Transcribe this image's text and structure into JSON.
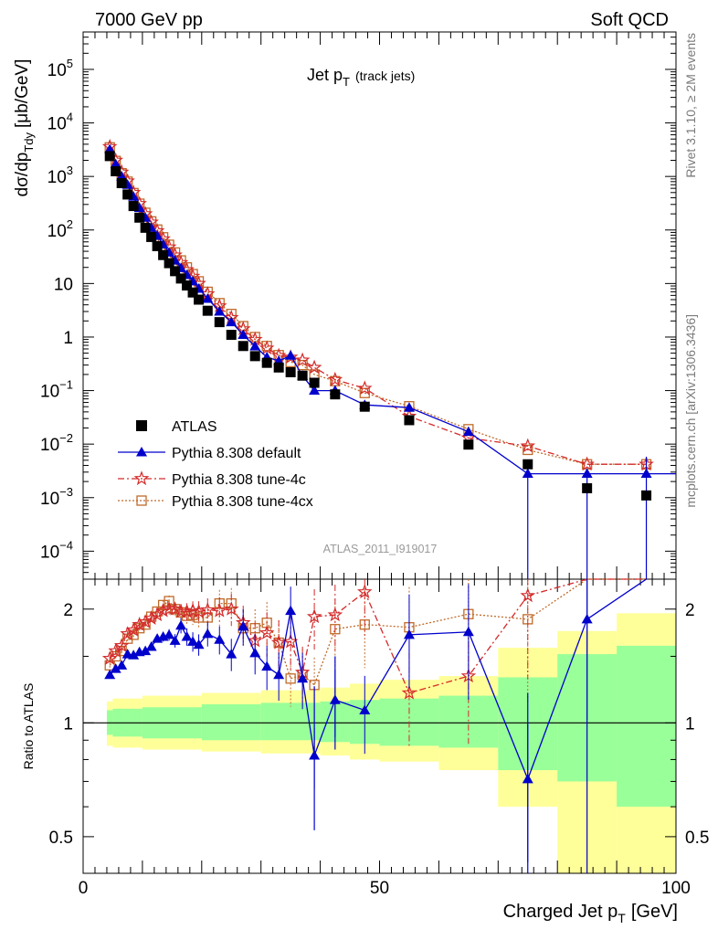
{
  "header": {
    "left": "7000 GeV pp",
    "right": "Soft QCD"
  },
  "side": {
    "top": "Rivet 3.1.10, ≥ 2M events",
    "bottom": "mcplots.cern.ch [arXiv:1306.3436]"
  },
  "analysis_id": "ATLAS_2011_I919017",
  "colors": {
    "data": "#000000",
    "default": "#0000cc",
    "tune4c": "#d42a2a",
    "tune4cx": "#c06a2a",
    "band_inner": "#99ff99",
    "band_outer": "#ffff99"
  },
  "chart_data": [
    {
      "type": "scatter",
      "title": "Jet p",
      "title_sub": "T",
      "title_extra": "(track jets)",
      "ylabel": "dσ/dp",
      "ylabel_sub": "Tdy",
      "ylabel_unit": "[μb/GeV]",
      "yscale": "log",
      "xlim": [
        0,
        100
      ],
      "ylim": [
        3e-05,
        500000
      ],
      "yticks": [
        {
          "v": 0.0001,
          "base": "10",
          "exp": "−4"
        },
        {
          "v": 0.001,
          "base": "10",
          "exp": "−3"
        },
        {
          "v": 0.01,
          "base": "10",
          "exp": "−2"
        },
        {
          "v": 0.1,
          "base": "10",
          "exp": "−1"
        },
        {
          "v": 1,
          "base": "1",
          "exp": ""
        },
        {
          "v": 10,
          "base": "10",
          "exp": ""
        },
        {
          "v": 100,
          "base": "10",
          "exp": "2"
        },
        {
          "v": 1000,
          "base": "10",
          "exp": "3"
        },
        {
          "v": 10000,
          "base": "10",
          "exp": "4"
        },
        {
          "v": 100000,
          "base": "10",
          "exp": "5"
        }
      ],
      "legend": {
        "data": "ATLAS",
        "default": "Pythia 8.308 default",
        "tune4c": "Pythia 8.308 tune-4c",
        "tune4cx": "Pythia 8.308 tune-4cx"
      },
      "x": [
        4.5,
        5.5,
        6.5,
        7.5,
        8.5,
        9.5,
        10.5,
        11.5,
        12.5,
        13.5,
        14.5,
        15.5,
        16.5,
        17.5,
        18.5,
        19.5,
        21,
        23,
        25,
        27,
        29,
        31,
        33,
        35,
        37,
        39,
        42.5,
        47.5,
        55,
        65,
        75,
        85,
        95
      ],
      "series": [
        {
          "key": "data",
          "values": [
            2400,
            1250,
            750,
            460,
            280,
            170,
            110,
            74,
            50,
            34,
            24,
            17,
            12.4,
            9.2,
            6.8,
            5.0,
            3.1,
            1.9,
            1.1,
            0.68,
            0.44,
            0.33,
            0.27,
            0.22,
            0.19,
            0.14,
            0.085,
            0.05,
            0.028,
            0.0098,
            0.0042,
            0.0015,
            0.0011
          ]
        },
        {
          "key": "default",
          "values": [
            3200,
            1700,
            1000,
            700,
            420,
            260,
            170,
            110,
            78,
            54,
            38,
            27,
            19.5,
            14.5,
            11,
            8.0,
            5.2,
            3.0,
            1.9,
            1.1,
            0.67,
            0.42,
            0.36,
            0.45,
            0.19,
            0.1,
            0.1,
            0.054,
            0.048,
            0.017,
            0.0028,
            0.0028,
            0.0028
          ]
        },
        {
          "key": "tune4c",
          "values": [
            3600,
            2000,
            1200,
            820,
            500,
            310,
            200,
            140,
            96,
            68,
            48,
            34,
            24.5,
            18,
            13.6,
            10,
            6.4,
            3.8,
            2.3,
            1.42,
            0.9,
            0.62,
            0.45,
            0.42,
            0.37,
            0.27,
            0.16,
            0.11,
            0.033,
            0.013,
            0.0092,
            0.0042,
            0.0042
          ]
        },
        {
          "key": "tune4cx",
          "values": [
            3500,
            1950,
            1150,
            800,
            490,
            310,
            210,
            145,
            102,
            73,
            53,
            38,
            27,
            20,
            15,
            11,
            7.0,
            4.3,
            2.7,
            1.6,
            1.0,
            0.68,
            0.46,
            0.34,
            0.3,
            0.2,
            0.15,
            0.09,
            0.051,
            0.019,
            0.0078,
            0.0042,
            0.0042
          ]
        }
      ]
    },
    {
      "type": "scatter",
      "ylabel": "Ratio to ATLAS",
      "yscale": "log",
      "xlabel": "Charged Jet p",
      "xlabel_sub": "T",
      "xlabel_unit": "[GeV]",
      "xlim": [
        0,
        100
      ],
      "ylim": [
        0.4,
        2.4
      ],
      "yticks": [
        {
          "v": 0.5,
          "label": "0.5"
        },
        {
          "v": 1,
          "label": "1"
        },
        {
          "v": 2,
          "label": "2"
        }
      ],
      "xticks": [
        {
          "v": 0,
          "label": "0"
        },
        {
          "v": 50,
          "label": "50"
        },
        {
          "v": 100,
          "label": "100"
        }
      ],
      "bands": [
        {
          "x0": 4,
          "x1": 5,
          "inner": [
            0.93,
            1.08
          ],
          "outer": [
            0.87,
            1.14
          ]
        },
        {
          "x0": 5,
          "x1": 10,
          "inner": [
            0.92,
            1.09
          ],
          "outer": [
            0.86,
            1.16
          ]
        },
        {
          "x0": 10,
          "x1": 20,
          "inner": [
            0.91,
            1.1
          ],
          "outer": [
            0.85,
            1.18
          ]
        },
        {
          "x0": 20,
          "x1": 30,
          "inner": [
            0.9,
            1.12
          ],
          "outer": [
            0.84,
            1.2
          ]
        },
        {
          "x0": 30,
          "x1": 40,
          "inner": [
            0.9,
            1.13
          ],
          "outer": [
            0.83,
            1.22
          ]
        },
        {
          "x0": 40,
          "x1": 45,
          "inner": [
            0.89,
            1.14
          ],
          "outer": [
            0.82,
            1.24
          ]
        },
        {
          "x0": 45,
          "x1": 50,
          "inner": [
            0.88,
            1.15
          ],
          "outer": [
            0.8,
            1.27
          ]
        },
        {
          "x0": 50,
          "x1": 60,
          "inner": [
            0.87,
            1.16
          ],
          "outer": [
            0.79,
            1.3
          ]
        },
        {
          "x0": 60,
          "x1": 70,
          "inner": [
            0.86,
            1.18
          ],
          "outer": [
            0.75,
            1.33
          ]
        },
        {
          "x0": 70,
          "x1": 80,
          "inner": [
            0.75,
            1.32
          ],
          "outer": [
            0.6,
            1.58
          ]
        },
        {
          "x0": 80,
          "x1": 90,
          "inner": [
            0.7,
            1.52
          ],
          "outer": [
            0.35,
            1.75
          ]
        },
        {
          "x0": 90,
          "x1": 100,
          "inner": [
            0.6,
            1.6
          ],
          "outer": [
            0.35,
            1.95
          ]
        }
      ],
      "x": [
        4.5,
        5.5,
        6.5,
        7.5,
        8.5,
        9.5,
        10.5,
        11.5,
        12.5,
        13.5,
        14.5,
        15.5,
        16.5,
        17.5,
        18.5,
        19.5,
        21,
        23,
        25,
        27,
        29,
        31,
        33,
        35,
        37,
        39,
        42.5,
        47.5,
        55,
        65,
        75,
        85,
        95
      ],
      "series": [
        {
          "key": "default",
          "values": [
            1.34,
            1.39,
            1.42,
            1.52,
            1.51,
            1.54,
            1.55,
            1.59,
            1.67,
            1.69,
            1.71,
            1.65,
            1.81,
            1.69,
            1.64,
            1.61,
            1.72,
            1.66,
            1.52,
            1.8,
            1.53,
            1.41,
            1.34,
            1.98,
            1.31,
            0.82,
            1.15,
            1.08,
            1.71,
            1.74,
            0.71,
            1.88,
            2.5
          ]
        },
        {
          "key": "tune4c",
          "values": [
            1.48,
            1.55,
            1.6,
            1.72,
            1.76,
            1.82,
            1.85,
            1.89,
            1.93,
            1.98,
            2.0,
            2.0,
            1.97,
            1.97,
            1.98,
            1.97,
            1.99,
            1.98,
            2.0,
            1.84,
            1.65,
            1.73,
            1.63,
            1.64,
            1.36,
            1.91,
            1.93,
            2.22,
            1.2,
            1.33,
            2.17,
            2.5,
            2.5
          ]
        },
        {
          "key": "tune4cx",
          "values": [
            1.42,
            1.5,
            1.55,
            1.67,
            1.71,
            1.78,
            1.82,
            1.91,
            1.97,
            2.05,
            2.1,
            2.0,
            1.96,
            1.92,
            1.93,
            1.9,
            1.9,
            2.07,
            2.07,
            1.78,
            1.78,
            1.84,
            1.63,
            1.31,
            1.34,
            1.26,
            1.77,
            1.82,
            1.79,
            1.94,
            1.88,
            2.5,
            2.5
          ]
        }
      ]
    }
  ]
}
